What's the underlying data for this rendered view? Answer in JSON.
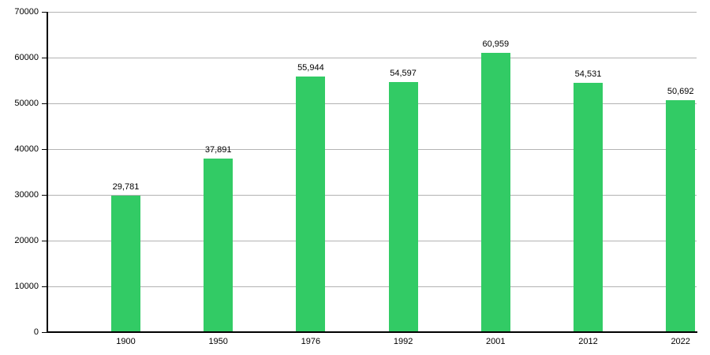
{
  "chart_data": {
    "type": "bar",
    "title": "",
    "xlabel": "",
    "ylabel": "",
    "categories": [
      "1900",
      "1950",
      "1976",
      "1992",
      "2001",
      "2012",
      "2022"
    ],
    "values": [
      29781,
      37891,
      55944,
      54597,
      60959,
      54531,
      50692
    ],
    "value_labels": [
      "29,781",
      "37,891",
      "55,944",
      "54,597",
      "60,959",
      "54,531",
      "50,692"
    ],
    "ylim": [
      0,
      70000
    ],
    "ytick_interval": 10000,
    "ytick_labels": [
      "0",
      "10000",
      "20000",
      "30000",
      "40000",
      "50000",
      "60000",
      "70000"
    ],
    "grid": "on",
    "legend": "none",
    "bar_color": "#32cb65",
    "gridline_color": "#b3b3b3",
    "axis_color": "#000000",
    "text_color": "#000000"
  }
}
